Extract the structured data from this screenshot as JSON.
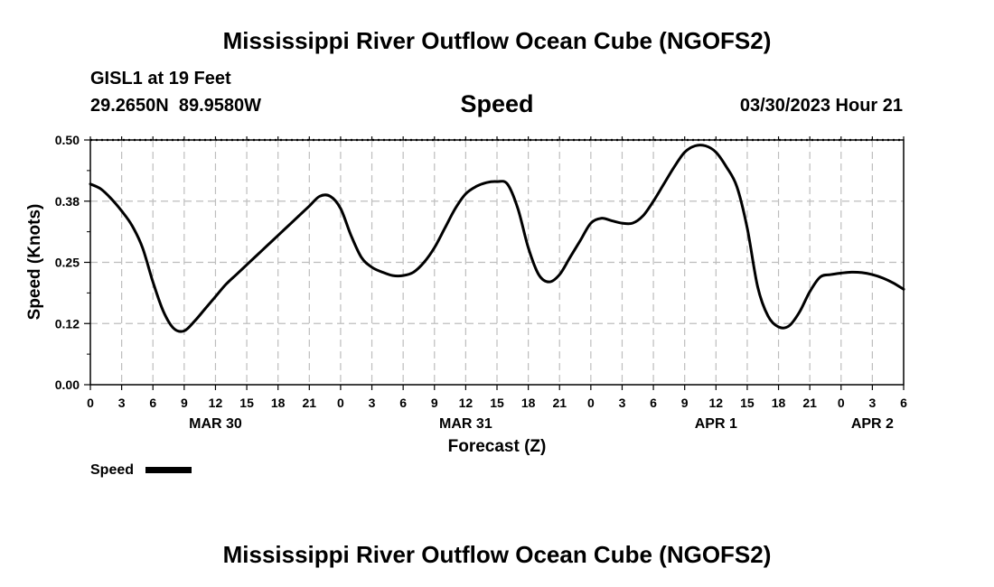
{
  "header": {
    "title": "Mississippi River Outflow Ocean Cube (NGOFS2)",
    "station": "GISL1 at 19 Feet",
    "lat": "29.2650N",
    "lon": "89.9580W",
    "variable": "Speed",
    "datetime": "03/30/2023 Hour 21"
  },
  "footer": {
    "title": "Mississippi River Outflow Ocean Cube (NGOFS2)"
  },
  "chart_data": {
    "type": "line",
    "xlabel": "Forecast (Z)",
    "ylabel": "Speed (Knots)",
    "ylim": [
      0,
      0.5
    ],
    "xlim_hours": [
      0,
      78
    ],
    "yticks": [
      "0.00",
      "0.12",
      "0.25",
      "0.38",
      "0.50"
    ],
    "xtick_labels": [
      "0",
      "3",
      "6",
      "9",
      "12",
      "15",
      "18",
      "21",
      "0",
      "3",
      "6",
      "9",
      "12",
      "15",
      "18",
      "21",
      "0",
      "3",
      "6",
      "9",
      "12",
      "15",
      "18",
      "21",
      "0",
      "3",
      "6"
    ],
    "date_labels": [
      {
        "label": "MAR 30",
        "hour": 12
      },
      {
        "label": "MAR 31",
        "hour": 36
      },
      {
        "label": "APR 1",
        "hour": 60
      },
      {
        "label": "APR 2",
        "hour": 75
      }
    ],
    "grid": true,
    "legend_position": "bottom-left",
    "series": [
      {
        "name": "Speed",
        "color": "#000000",
        "x_hours": [
          0,
          1,
          2,
          3,
          4,
          5,
          6,
          7,
          8,
          9,
          10,
          11,
          12,
          13,
          14,
          15,
          16,
          17,
          18,
          19,
          20,
          21,
          22,
          23,
          24,
          25,
          26,
          27,
          28,
          29,
          30,
          31,
          32,
          33,
          34,
          35,
          36,
          37,
          38,
          39,
          40,
          41,
          42,
          43,
          44,
          45,
          46,
          47,
          48,
          49,
          50,
          51,
          52,
          53,
          54,
          55,
          56,
          57,
          58,
          59,
          60,
          61,
          62,
          63,
          64,
          65,
          66,
          67,
          68,
          69,
          70,
          71,
          72,
          73,
          74,
          75,
          76,
          77,
          78
        ],
        "values": [
          0.41,
          0.4,
          0.38,
          0.355,
          0.325,
          0.28,
          0.21,
          0.15,
          0.115,
          0.11,
          0.13,
          0.155,
          0.18,
          0.205,
          0.225,
          0.245,
          0.265,
          0.285,
          0.305,
          0.325,
          0.345,
          0.365,
          0.385,
          0.385,
          0.36,
          0.305,
          0.26,
          0.24,
          0.23,
          0.223,
          0.223,
          0.23,
          0.25,
          0.28,
          0.32,
          0.36,
          0.39,
          0.405,
          0.413,
          0.415,
          0.41,
          0.36,
          0.28,
          0.225,
          0.21,
          0.225,
          0.26,
          0.295,
          0.33,
          0.34,
          0.335,
          0.33,
          0.33,
          0.345,
          0.375,
          0.41,
          0.445,
          0.475,
          0.488,
          0.488,
          0.475,
          0.445,
          0.405,
          0.32,
          0.2,
          0.14,
          0.118,
          0.12,
          0.148,
          0.19,
          0.22,
          0.225,
          0.228,
          0.23,
          0.229,
          0.225,
          0.218,
          0.208,
          0.195
        ]
      }
    ]
  }
}
